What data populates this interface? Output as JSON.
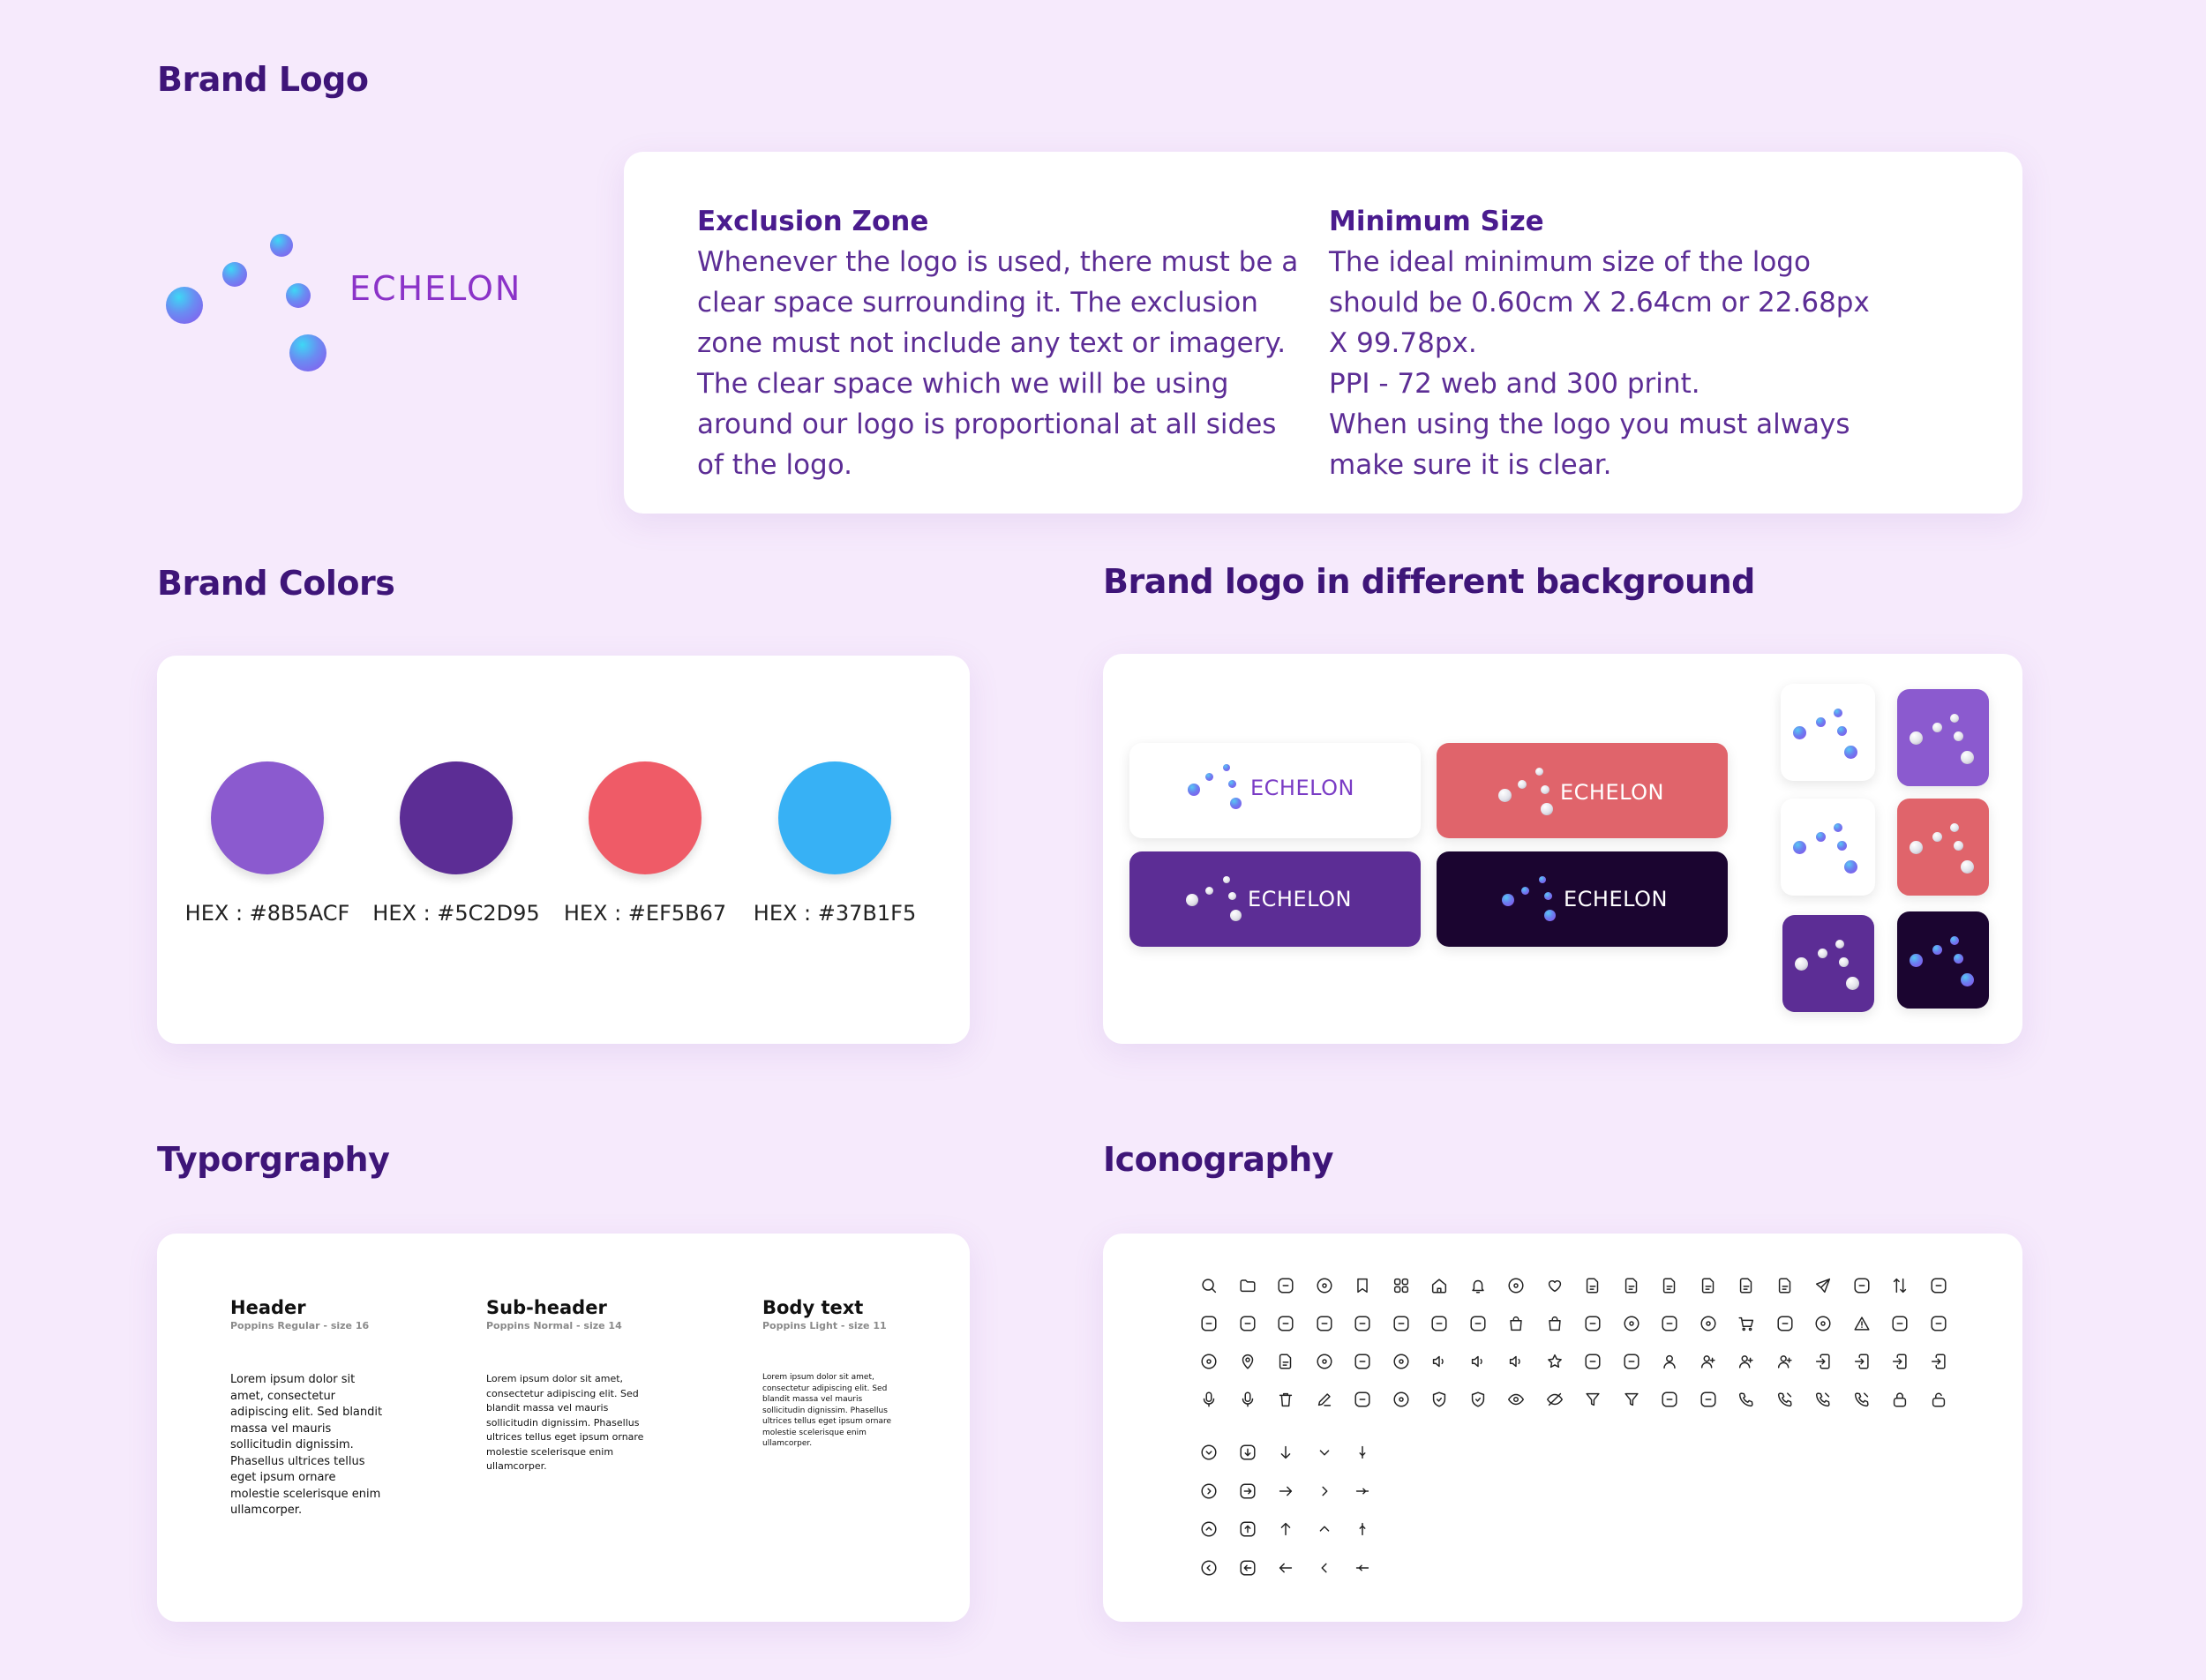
{
  "sections": {
    "brand_logo": "Brand Logo",
    "brand_colors": "Brand Colors",
    "logo_backgrounds": "Brand logo in different background",
    "typography": "Typorgraphy",
    "iconography": "Iconography"
  },
  "logo": {
    "wordmark": "ECHELON"
  },
  "exclusion_zone": {
    "title": "Exclusion Zone",
    "body": "Whenever the logo is used, there must be a\nclear space surrounding it. The exclusion\nzone must not include any text or imagery.\nThe clear space which we will be using\naround our logo is proportional at all sides\nof the logo."
  },
  "minimum_size": {
    "title": "Minimum Size",
    "body": "The ideal minimum size of the logo\nshould be 0.60cm X 2.64cm or 22.68px\nX 99.78px.\nPPI - 72 web and 300 print.\nWhen using the logo you must always\nmake sure it is clear."
  },
  "colors": [
    {
      "label": "HEX : #8B5ACF",
      "value": "#8B5ACF"
    },
    {
      "label": "HEX : #5C2D95",
      "value": "#5C2D95"
    },
    {
      "label": "HEX : #EF5B67",
      "value": "#EF5B67"
    },
    {
      "label": "HEX : #37B1F5",
      "value": "#37B1F5"
    }
  ],
  "logo_variants": {
    "white": "ECHELON",
    "coral": "ECHELON",
    "purple": "ECHELON",
    "dark": "ECHELON"
  },
  "variant_colors": {
    "white": "#FFFFFF",
    "coral": "#E0646B",
    "purple": "#5C2D95",
    "dark": "#1B0530",
    "light_purple": "#8B5ACF"
  },
  "typography": [
    {
      "title": "Header",
      "spec": "Poppins Regular - size 16",
      "sample": "Lorem ipsum dolor sit amet, consectetur adipiscing elit. Sed blandit massa vel mauris sollicitudin dignissim. Phasellus ultrices tellus eget ipsum ornare molestie scelerisque enim ullamcorper."
    },
    {
      "title": "Sub-header",
      "spec": "Poppins Normal - size 14",
      "sample": "Lorem ipsum dolor sit amet, consectetur adipiscing elit. Sed blandit massa vel mauris sollicitudin dignissim. Phasellus ultrices tellus eget ipsum ornare molestie scelerisque enim ullamcorper."
    },
    {
      "title": "Body text",
      "spec": "Poppins Light - size 11",
      "sample": "Lorem ipsum dolor sit amet, consectetur adipiscing elit. Sed blandit massa vel mauris sollicitudin dignissim. Phasellus ultrices tellus eget ipsum ornare molestie scelerisque enim ullamcorper."
    }
  ],
  "icons": [
    [
      "search-icon",
      "folder-icon",
      "wallet-icon",
      "pie-chart-icon",
      "bookmark-icon",
      "grid-icon",
      "home-icon",
      "bell-icon",
      "chat-icon",
      "heart-icon",
      "document-icon",
      "document-upload-icon",
      "document-text-icon",
      "document-download-icon",
      "document-check-icon",
      "document-add-icon",
      "send-icon",
      "message-icon",
      "sort-icon",
      "box-icon"
    ],
    [
      "scan-icon",
      "chart-icon",
      "calendar-icon",
      "mail-icon",
      "video-icon",
      "add-square-icon",
      "bar-chart-icon",
      "folder-upload-icon",
      "bag-icon",
      "shopping-bag-icon",
      "ticket-icon",
      "more-circle-icon",
      "more-square-icon",
      "discount-icon",
      "cart-icon",
      "info-square-icon",
      "info-circle-icon",
      "warning-icon",
      "close-square-icon",
      "tick-square-icon"
    ],
    [
      "discovery-icon",
      "location-icon",
      "paper-icon",
      "settings-icon",
      "time-square-icon",
      "time-circle-icon",
      "volume-up-icon",
      "volume-down-icon",
      "volume-off-icon",
      "star-icon",
      "ticket-star-icon",
      "camera-icon",
      "profile-icon",
      "add-user-icon",
      "two-users-icon",
      "three-users-icon",
      "login-icon",
      "logout-icon",
      "download-icon",
      "upload-icon"
    ],
    [
      "voice-icon",
      "microphone-icon",
      "delete-icon",
      "edit-icon",
      "edit-square-icon",
      "play-icon",
      "shield-done-icon",
      "shield-fail-icon",
      "show-icon",
      "hide-icon",
      "filter-icon",
      "filter-funnel-icon",
      "image-icon",
      "image-alt-icon",
      "call-icon",
      "calling-icon",
      "call-missed-icon",
      "call-silent-icon",
      "lock-icon",
      "unlock-icon"
    ]
  ],
  "arrow_icons": [
    [
      "arrow-down-circle-icon",
      "arrow-down-square-icon",
      "arrow-down-icon",
      "chevron-down-icon",
      "arrow-down-small-icon"
    ],
    [
      "arrow-right-circle-icon",
      "arrow-right-square-icon",
      "arrow-right-icon",
      "chevron-right-icon",
      "arrow-right-small-icon"
    ],
    [
      "arrow-up-circle-icon",
      "arrow-up-square-icon",
      "arrow-up-icon",
      "chevron-up-icon",
      "arrow-up-small-icon"
    ],
    [
      "arrow-left-circle-icon",
      "arrow-left-square-icon",
      "arrow-left-icon",
      "chevron-left-icon",
      "arrow-left-small-icon"
    ]
  ]
}
